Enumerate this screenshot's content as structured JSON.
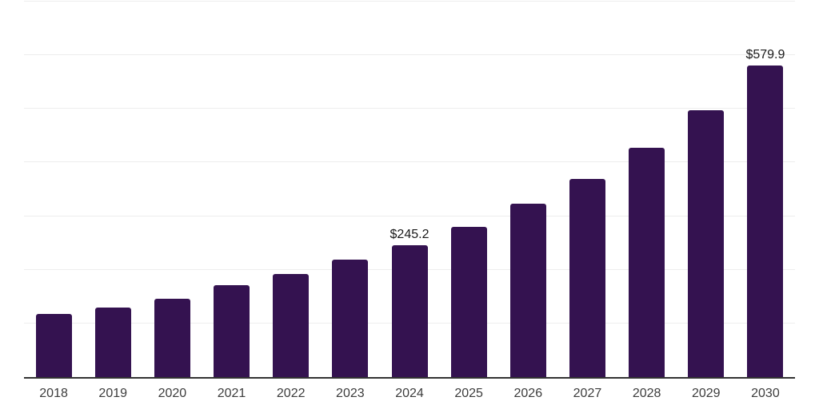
{
  "page": {
    "background": "#ffffff"
  },
  "chart_data": {
    "type": "bar",
    "title": "",
    "xlabel": "",
    "ylabel": "",
    "categories": [
      "2018",
      "2019",
      "2020",
      "2021",
      "2022",
      "2023",
      "2024",
      "2025",
      "2026",
      "2027",
      "2028",
      "2029",
      "2030"
    ],
    "values": [
      117,
      130,
      145,
      171,
      192,
      218,
      245.2,
      280,
      322,
      369,
      427,
      497,
      579.9
    ],
    "annotations": [
      {
        "category": "2024",
        "text": "$245.2"
      },
      {
        "category": "2030",
        "text": "$579.9"
      }
    ],
    "ylim": [
      0,
      700
    ],
    "y_gridline_step": 100,
    "y_tick_labels_visible": false,
    "grid": true,
    "legend": "none",
    "colors": {
      "bar": "#341250",
      "grid": "#ededed",
      "axis_line": "#333333",
      "tick_label": "#3c3c3c",
      "annotation": "#1a1a1a"
    }
  }
}
